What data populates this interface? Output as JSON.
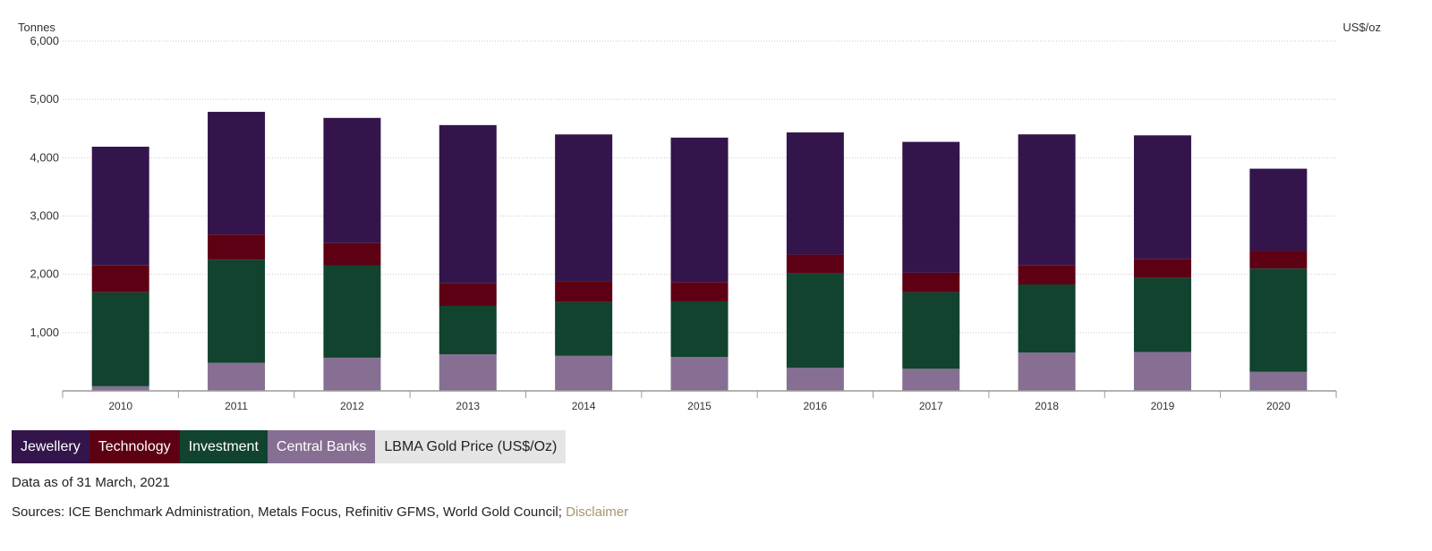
{
  "chart_data": {
    "type": "bar",
    "stacked": true,
    "y_unit_left": "Tonnes",
    "y_unit_right": "US$/oz",
    "ylim": [
      0,
      6000
    ],
    "yticks": [
      0,
      1000,
      2000,
      3000,
      4000,
      5000,
      6000
    ],
    "ytick_labels": [
      "1,000",
      "2,000",
      "3,000",
      "4,000",
      "5,000",
      "6,000"
    ],
    "grid": true,
    "categories": [
      "2010",
      "2011",
      "2012",
      "2013",
      "2014",
      "2015",
      "2016",
      "2017",
      "2018",
      "2019",
      "2020"
    ],
    "series": [
      {
        "name": "Central Banks",
        "color": "#866f93",
        "values": [
          79,
          481,
          569,
          629,
          601,
          580,
          395,
          379,
          656,
          668,
          326
        ]
      },
      {
        "name": "Investment",
        "color": "#11432f",
        "values": [
          1612,
          1773,
          1587,
          829,
          924,
          955,
          1621,
          1315,
          1170,
          1271,
          1774
        ]
      },
      {
        "name": "Technology",
        "color": "#5e0014",
        "values": [
          461,
          429,
          381,
          389,
          348,
          332,
          323,
          333,
          335,
          327,
          302
        ]
      },
      {
        "name": "Jewellery",
        "color": "#33154b",
        "values": [
          2037,
          2104,
          2146,
          2713,
          2527,
          2478,
          2095,
          2245,
          2240,
          2118,
          1410
        ]
      }
    ],
    "legend": [
      {
        "name": "Jewellery",
        "color": "#33154b"
      },
      {
        "name": "Technology",
        "color": "#5e0014"
      },
      {
        "name": "Investment",
        "color": "#11432f"
      },
      {
        "name": "Central Banks",
        "color": "#866f93"
      },
      {
        "name": "LBMA Gold Price (US$/Oz)",
        "color": "#e5e5e5"
      }
    ]
  },
  "notes": {
    "as_of": "Data as of 31 March, 2021",
    "sources": "Sources: ICE Benchmark Administration, Metals Focus, Refinitiv GFMS, World Gold Council; ",
    "disclaimer": "Disclaimer"
  }
}
